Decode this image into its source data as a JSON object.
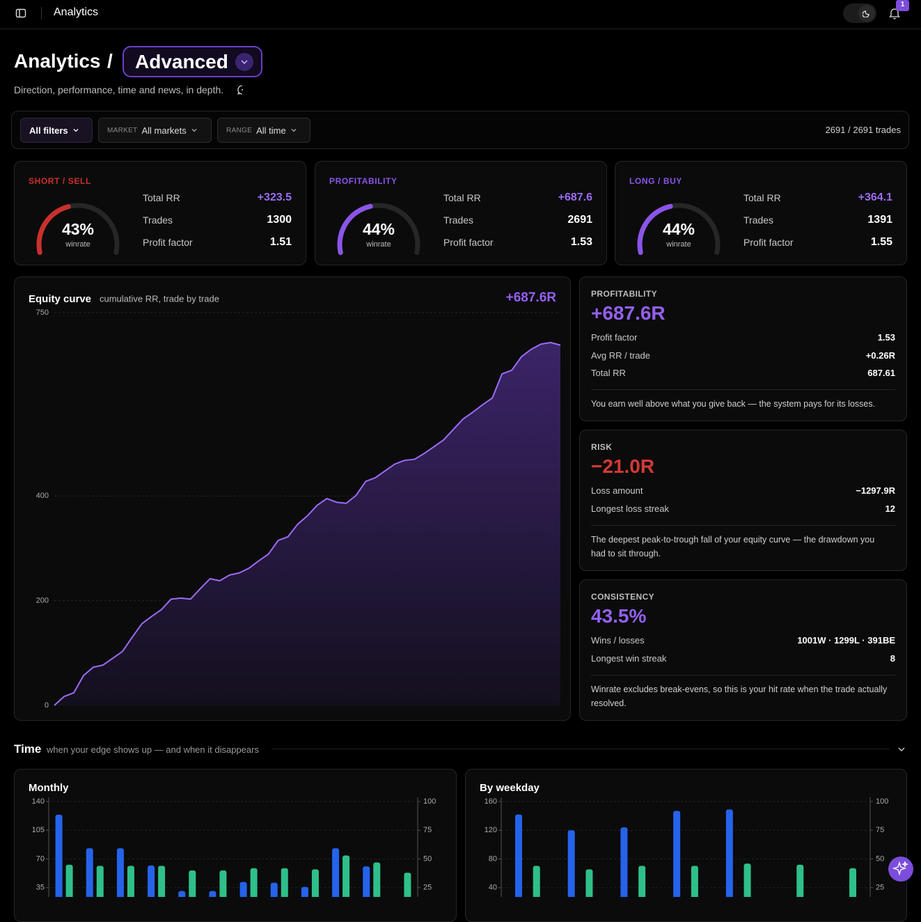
{
  "topbar": {
    "title": "Analytics",
    "notifications": "1"
  },
  "heading": {
    "title": "Analytics",
    "separator": "/",
    "view": "Advanced",
    "subtitle": "Direction, performance, time and news, in depth."
  },
  "filters": {
    "all": "All filters",
    "market_label": "MARKET",
    "market": "All markets",
    "range_label": "RANGE",
    "range": "All time",
    "count": "2691 / 2691 trades"
  },
  "gauges": [
    {
      "label": "SHORT / SELL",
      "color": "#c9302c",
      "winrate": 43,
      "winrate_label": "43%",
      "caption": "winrate",
      "rows": [
        [
          "Total RR",
          "+323.5"
        ],
        [
          "Trades",
          "1300"
        ],
        [
          "Profit factor",
          "1.51"
        ]
      ]
    },
    {
      "label": "PROFITABILITY",
      "color": "#8b55e8",
      "winrate": 44,
      "winrate_label": "44%",
      "caption": "winrate",
      "rows": [
        [
          "Total RR",
          "+687.6"
        ],
        [
          "Trades",
          "2691"
        ],
        [
          "Profit factor",
          "1.53"
        ]
      ]
    },
    {
      "label": "LONG / BUY",
      "color": "#8b55e8",
      "winrate": 44,
      "winrate_label": "44%",
      "caption": "winrate",
      "rows": [
        [
          "Total RR",
          "+364.1"
        ],
        [
          "Trades",
          "1391"
        ],
        [
          "Profit factor",
          "1.55"
        ]
      ]
    }
  ],
  "stats": [
    {
      "label": "PROFITABILITY",
      "value": "+687.6R",
      "color": "#9460f0",
      "rows": [
        [
          "Profit factor",
          "1.53"
        ],
        [
          "Avg RR / trade",
          "+0.26R"
        ],
        [
          "Total RR",
          "687.61"
        ]
      ],
      "note": "You earn well above what you give back — the system pays for its losses."
    },
    {
      "label": "RISK",
      "value": "−21.0R",
      "color": "#d33a35",
      "rows": [
        [
          "Loss amount",
          "−1297.9R"
        ],
        [
          "Longest loss streak",
          "12"
        ]
      ],
      "note": "The deepest peak-to-trough fall of your equity curve — the drawdown you had to sit through."
    },
    {
      "label": "CONSISTENCY",
      "value": "43.5%",
      "color": "#9460f0",
      "rows": [
        [
          "Wins / losses",
          "1001W · 1299L · 391BE"
        ],
        [
          "Longest win streak",
          "8"
        ]
      ],
      "note": "Winrate excludes break-evens, so this is your hit rate when the trade actually resolved."
    }
  ],
  "section": {
    "title": "Time",
    "subtitle": "when your edge shows up — and when it disappears"
  },
  "chart_data": [
    {
      "type": "area",
      "title": "Equity curve",
      "subtitle": "cumulative RR, trade by trade",
      "total": "+687.6R",
      "color": "#9d6cf5",
      "values": [
        0,
        17,
        24,
        57,
        73,
        77,
        90,
        103,
        130,
        156,
        170,
        183,
        203,
        205,
        203,
        223,
        242,
        238,
        249,
        253,
        262,
        276,
        289,
        315,
        322,
        346,
        362,
        382,
        395,
        388,
        386,
        401,
        428,
        435,
        448,
        461,
        468,
        470,
        481,
        494,
        507,
        527,
        547,
        560,
        574,
        587,
        633,
        640,
        666,
        680,
        690,
        693,
        688
      ],
      "ylim": [
        0,
        750
      ],
      "yticks": [
        0,
        200,
        400,
        750
      ],
      "grid": true
    },
    {
      "type": "bar",
      "title": "Monthly",
      "categories": [
        null,
        null,
        null,
        null,
        null,
        null,
        null,
        null,
        null,
        null,
        null,
        null
      ],
      "series": [
        {
          "color": "#2563eb",
          "values": [
            124,
            83,
            83,
            62,
            31,
            31,
            42,
            41,
            36,
            83,
            61,
            0
          ]
        },
        {
          "color": "#2fbf8a",
          "axis": "y2",
          "values": [
            45,
            44,
            44,
            44,
            40,
            40,
            42,
            42,
            41,
            53,
            47,
            38
          ]
        }
      ],
      "ylim": [
        0,
        140
      ],
      "yticks": [
        35,
        70,
        105,
        140
      ],
      "y2lim": [
        0,
        100
      ],
      "y2ticks": [
        25,
        50,
        75,
        100
      ],
      "grid": true
    },
    {
      "type": "bar",
      "title": "By weekday",
      "categories": [
        null,
        null,
        null,
        null,
        null,
        null,
        null
      ],
      "series": [
        {
          "color": "#2563eb",
          "values": [
            142,
            120,
            124,
            147,
            149,
            0,
            0
          ]
        },
        {
          "color": "#2fbf8a",
          "axis": "y2",
          "values": [
            44,
            41,
            44,
            44,
            46,
            45,
            42
          ]
        }
      ],
      "ylim": [
        0,
        160
      ],
      "yticks": [
        40,
        80,
        120,
        160
      ],
      "y2lim": [
        0,
        100
      ],
      "y2ticks": [
        25,
        50,
        75,
        100
      ],
      "grid": true
    }
  ]
}
